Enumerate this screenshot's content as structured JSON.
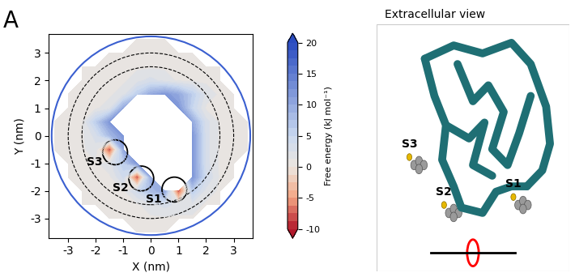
{
  "panel_label": "A",
  "chart_data": {
    "type": "heatmap",
    "xlabel": "X (nm)",
    "ylabel": "Y (nm)",
    "xlim": [
      -3.7,
      3.7
    ],
    "ylim": [
      -3.7,
      3.7
    ],
    "xticks": [
      -3,
      -2,
      -1,
      0,
      1,
      2,
      3
    ],
    "yticks": [
      -3,
      -2,
      -1,
      0,
      1,
      2,
      3
    ],
    "x": [
      -3.5,
      -3.0,
      -2.5,
      -2.0,
      -1.5,
      -1.0,
      -0.5,
      0.0,
      0.5,
      1.0,
      1.5,
      2.0,
      2.5,
      3.0,
      3.5
    ],
    "y": [
      -3.5,
      -3.0,
      -2.5,
      -2.0,
      -1.5,
      -1.0,
      -0.5,
      0.0,
      0.5,
      1.0,
      1.5,
      2.0,
      2.5,
      3.0,
      3.5
    ],
    "cells": [
      [
        null,
        null,
        null,
        null,
        null,
        null,
        1,
        1,
        1,
        null,
        null,
        null,
        null,
        null,
        null
      ],
      [
        null,
        null,
        null,
        null,
        1,
        1,
        1,
        1,
        1,
        1,
        1,
        null,
        null,
        null,
        null
      ],
      [
        null,
        null,
        1,
        1,
        1,
        1,
        1,
        2,
        3,
        2,
        2,
        1,
        1,
        null,
        null
      ],
      [
        null,
        null,
        1,
        1,
        1,
        1,
        4,
        8,
        10,
        -8,
        6,
        2,
        1,
        null,
        null
      ],
      [
        null,
        1,
        1,
        1,
        1,
        4,
        -8,
        10,
        null,
        null,
        12,
        4,
        1,
        1,
        null
      ],
      [
        null,
        1,
        1,
        1,
        2,
        6,
        12,
        null,
        null,
        null,
        12,
        3,
        1,
        1,
        null
      ],
      [
        1,
        1,
        1,
        2,
        -8,
        10,
        null,
        null,
        null,
        null,
        12,
        3,
        1,
        1,
        1
      ],
      [
        1,
        1,
        1,
        3,
        8,
        12,
        null,
        null,
        null,
        null,
        12,
        3,
        1,
        1,
        1
      ],
      [
        0,
        1,
        1,
        6,
        12,
        null,
        null,
        null,
        null,
        null,
        10,
        3,
        1,
        1,
        0
      ],
      [
        null,
        1,
        1,
        1,
        2,
        10,
        null,
        null,
        null,
        12,
        5,
        1,
        1,
        1,
        null
      ],
      [
        null,
        1,
        1,
        1,
        1,
        2,
        6,
        10,
        12,
        10,
        6,
        2,
        1,
        1,
        null
      ],
      [
        null,
        null,
        1,
        1,
        1,
        1,
        2,
        3,
        2,
        1,
        1,
        1,
        1,
        null,
        null
      ],
      [
        null,
        null,
        1,
        1,
        1,
        1,
        1,
        1,
        1,
        1,
        1,
        1,
        1,
        null,
        null
      ],
      [
        null,
        null,
        null,
        null,
        1,
        1,
        1,
        1,
        1,
        1,
        1,
        null,
        null,
        null,
        null
      ],
      [
        null,
        null,
        null,
        null,
        null,
        null,
        1,
        1,
        1,
        null,
        null,
        null,
        null,
        null,
        null
      ]
    ],
    "colorbar": {
      "label": "Free energy (kJ mol⁻¹)",
      "lim": [
        -10,
        20
      ],
      "ticks": [
        -10,
        -5,
        0,
        5,
        10,
        15,
        20
      ]
    },
    "sites": [
      {
        "label": "S1",
        "x": 0.85,
        "y": -1.95
      },
      {
        "label": "S2",
        "x": -0.35,
        "y": -1.55
      },
      {
        "label": "S3",
        "x": -1.3,
        "y": -0.6
      }
    ]
  },
  "structure_view": {
    "title": "Extracellular view",
    "labels": [
      "S3",
      "S2",
      "S1"
    ]
  }
}
